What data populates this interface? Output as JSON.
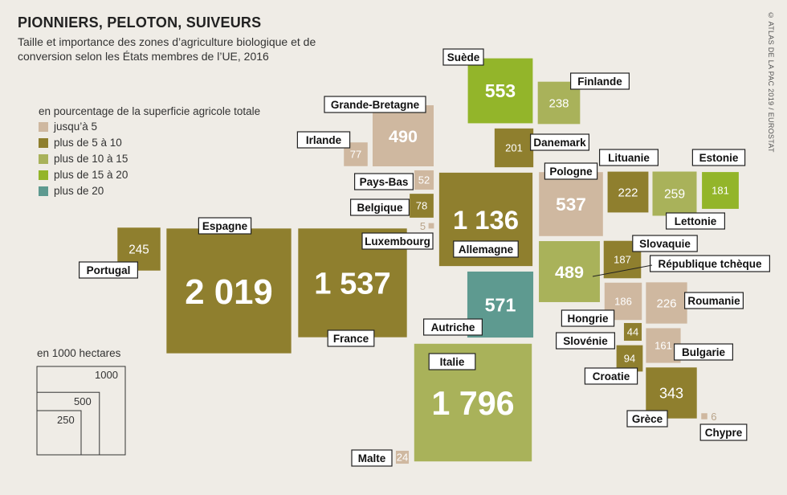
{
  "title": "PIONNIERS, PELOTON, SUIVEURS",
  "subtitle": "Taille et importance des zones d’agriculture biologique et de conversion selon les États membres de l’UE, 2016",
  "credit": "© ATLAS DE LA PAC 2019 / EUROSTAT",
  "legend": {
    "title": "en pourcentage de la superficie agricole totale",
    "items": [
      {
        "label": "jusqu’à 5",
        "color": "#cfb8a0"
      },
      {
        "label": "plus de 5 à 10",
        "color": "#8f7f2e"
      },
      {
        "label": "plus de 10 à 15",
        "color": "#a9b25a"
      },
      {
        "label": "plus de 15 à 20",
        "color": "#93b52a"
      },
      {
        "label": "plus de 20",
        "color": "#5e9a90"
      }
    ]
  },
  "scale": {
    "title": "en 1000 hectares",
    "labels": [
      "1000",
      "500",
      "250"
    ]
  },
  "chart_data": {
    "type": "table",
    "unit": "1000 hectares",
    "entries": [
      {
        "country": "Espagne",
        "value": 2019,
        "category": "plus de 5 à 10"
      },
      {
        "country": "Italie",
        "value": 1796,
        "category": "plus de 10 à 15"
      },
      {
        "country": "France",
        "value": 1537,
        "category": "plus de 5 à 10"
      },
      {
        "country": "Allemagne",
        "value": 1136,
        "category": "plus de 5 à 10"
      },
      {
        "country": "Autriche",
        "value": 571,
        "category": "plus de 20"
      },
      {
        "country": "Suède",
        "value": 553,
        "category": "plus de 15 à 20"
      },
      {
        "country": "Pologne",
        "value": 537,
        "category": "jusqu’à 5"
      },
      {
        "country": "Grande-Bretagne",
        "value": 490,
        "category": "jusqu’à 5"
      },
      {
        "country": "République tchèque",
        "value": 489,
        "category": "plus de 10 à 15"
      },
      {
        "country": "Grèce",
        "value": 343,
        "category": "plus de 5 à 10"
      },
      {
        "country": "Lettonie",
        "value": 259,
        "category": "plus de 10 à 15"
      },
      {
        "country": "Portugal",
        "value": 245,
        "category": "plus de 5 à 10"
      },
      {
        "country": "Finlande",
        "value": 238,
        "category": "plus de 10 à 15"
      },
      {
        "country": "Roumanie",
        "value": 226,
        "category": "jusqu’à 5"
      },
      {
        "country": "Lituanie",
        "value": 222,
        "category": "plus de 5 à 10"
      },
      {
        "country": "Danemark",
        "value": 201,
        "category": "plus de 5 à 10"
      },
      {
        "country": "Slovaquie",
        "value": 187,
        "category": "plus de 5 à 10"
      },
      {
        "country": "Hongrie",
        "value": 186,
        "category": "jusqu’à 5"
      },
      {
        "country": "Estonie",
        "value": 181,
        "category": "plus de 15 à 20"
      },
      {
        "country": "Bulgarie",
        "value": 161,
        "category": "jusqu’à 5"
      },
      {
        "country": "Croatie",
        "value": 94,
        "category": "plus de 5 à 10"
      },
      {
        "country": "Belgique",
        "value": 78,
        "category": "plus de 5 à 10"
      },
      {
        "country": "Irlande",
        "value": 77,
        "category": "jusqu’à 5"
      },
      {
        "country": "Pays-Bas",
        "value": 52,
        "category": "jusqu’à 5"
      },
      {
        "country": "Slovénie",
        "value": 44,
        "category": "plus de 5 à 10"
      },
      {
        "country": "Malte",
        "value": 24,
        "category": "jusqu’à 5"
      },
      {
        "country": "Chypre",
        "value": 6,
        "category": "jusqu’à 5"
      },
      {
        "country": "Luxembourg",
        "value": 5,
        "category": "jusqu’à 5"
      }
    ]
  }
}
